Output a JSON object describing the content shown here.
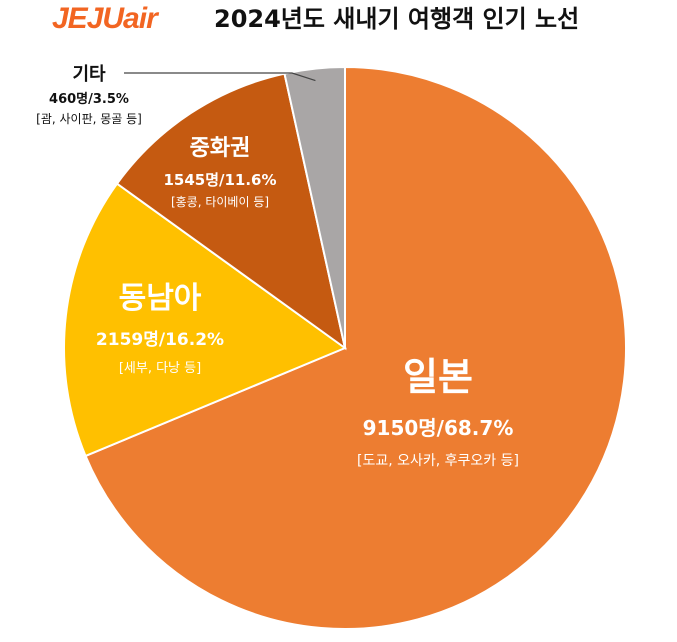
{
  "header": {
    "logo_text": "JEJUair",
    "title": "2024년도 새내기 여행객 인기 노선"
  },
  "colors": {
    "brand": "#f26522",
    "japan": "#ed7d31",
    "sea": "#ffc000",
    "china": "#c55a11",
    "other": "#a9a6a6"
  },
  "chart_data": {
    "type": "pie",
    "title": "2024년도 새내기 여행객 인기 노선",
    "series": [
      {
        "name": "일본",
        "value": 9150,
        "percent": 68.7,
        "label": "9150명/68.7%",
        "detail": "[도교, 오사카, 후쿠오카 등]",
        "color": "#ed7d31"
      },
      {
        "name": "동남아",
        "value": 2159,
        "percent": 16.2,
        "label": "2159명/16.2%",
        "detail": "[세부, 다낭 등]",
        "color": "#ffc000"
      },
      {
        "name": "중화권",
        "value": 1545,
        "percent": 11.6,
        "label": "1545명/11.6%",
        "detail": "[홍콩, 타이베이 등]",
        "color": "#c55a11"
      },
      {
        "name": "기타",
        "value": 460,
        "percent": 3.5,
        "label": "460명/3.5%",
        "detail": "[괌, 사이판, 몽골 등]",
        "color": "#a9a6a6"
      }
    ]
  }
}
